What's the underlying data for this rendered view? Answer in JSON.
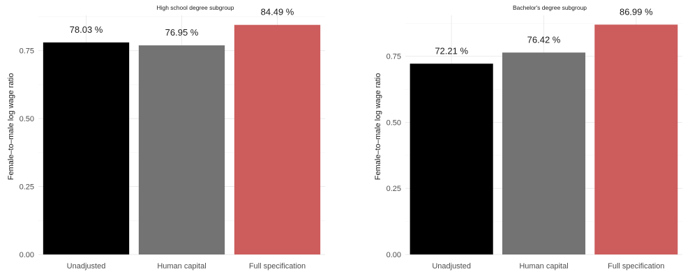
{
  "chart_data": [
    {
      "type": "bar",
      "title": "High school degree subgroup",
      "ylabel": "Female–to–male log wage ratio",
      "xlabel": "",
      "categories": [
        "Unadjusted",
        "Human capital",
        "Full specification"
      ],
      "values": [
        0.7803,
        0.7695,
        0.8449
      ],
      "data_labels": [
        "78.03 %",
        "76.95 %",
        "84.49 %"
      ],
      "colors": [
        "#000000",
        "#737373",
        "#cd5c5c"
      ],
      "ylim": [
        0,
        0.88
      ],
      "yticks": [
        0.0,
        0.25,
        0.5,
        0.75
      ],
      "ytick_labels": [
        "0.00",
        "0.25",
        "0.50",
        "0.75"
      ],
      "grid": true,
      "legend": "none"
    },
    {
      "type": "bar",
      "title": "Bachelor's degree subgroup",
      "ylabel": "Female–to–male log wage ratio",
      "xlabel": "",
      "categories": [
        "Unadjusted",
        "Human capital",
        "Full specification"
      ],
      "values": [
        0.7221,
        0.7642,
        0.8699
      ],
      "data_labels": [
        "72.21 %",
        "76.42 %",
        "86.99 %"
      ],
      "colors": [
        "#000000",
        "#737373",
        "#cd5c5c"
      ],
      "ylim": [
        0,
        0.905
      ],
      "yticks": [
        0.0,
        0.25,
        0.5,
        0.75
      ],
      "ytick_labels": [
        "0.00",
        "0.25",
        "0.50",
        "0.75"
      ],
      "grid": true,
      "legend": "none"
    }
  ]
}
